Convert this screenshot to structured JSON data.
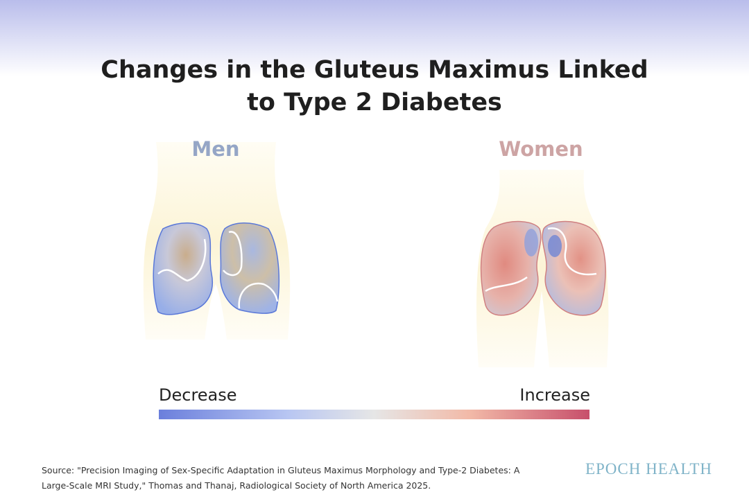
{
  "header": {
    "title": "Changes in the Gluteus Maximus Linked to Type 2 Diabetes"
  },
  "figures": {
    "men": {
      "label": "Men"
    },
    "women": {
      "label": "Women"
    }
  },
  "legend": {
    "low": "Decrease",
    "high": "Increase"
  },
  "footer": {
    "source": "Source: \"Precision Imaging of Sex-Specific Adaptation in Gluteus Maximus Morphology and Type-2 Diabetes: A Large-Scale MRI Study,\" Thomas and Thanaj, Radiological Society of North America 2025.",
    "brand": "EPOCH HEALTH"
  }
}
